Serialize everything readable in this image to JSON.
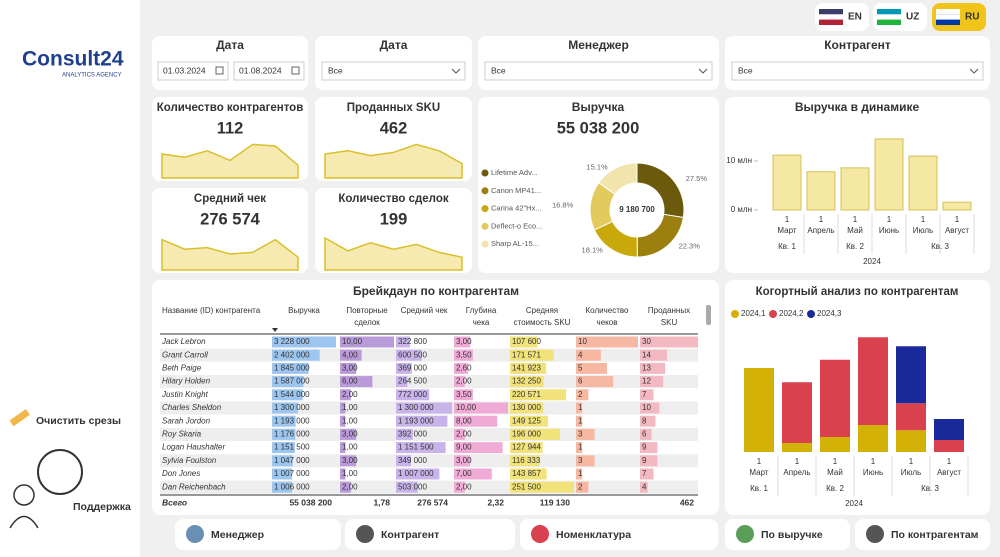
{
  "languages": [
    "EN",
    "UZ",
    "RU"
  ],
  "logo": {
    "name": "Consult24",
    "tagline": "ANALYTICS AGENCY"
  },
  "sidebar": {
    "clear": "Очистить срезы",
    "support": "Поддержка"
  },
  "filters": [
    {
      "title": "Дата",
      "from": "01.03.2024",
      "to": "01.08.2024"
    },
    {
      "title": "Дата",
      "value": "Все"
    },
    {
      "title": "Менеджер",
      "value": "Все"
    },
    {
      "title": "Контрагент",
      "value": "Все"
    }
  ],
  "kpis": [
    {
      "title": "Количество контрагентов",
      "value": "112"
    },
    {
      "title": "Проданных SKU",
      "value": "462"
    },
    {
      "title": "Средний чек",
      "value": "276 574"
    },
    {
      "title": "Количество сделок",
      "value": "199"
    }
  ],
  "revenue": {
    "title": "Выручка",
    "value": "55 038 200",
    "donut": {
      "type": "pie",
      "center_label": "9 180 700",
      "categories": [
        "Lifetime Adv...",
        "Canon MP41...",
        "Carina 42\"Hx...",
        "Deflect-o Eco...",
        "Sharp AL-15..."
      ],
      "values": [
        27.5,
        22.3,
        18.1,
        16.8,
        15.1
      ],
      "value_labels": [
        "27.5%",
        "22.3%",
        "18.1%",
        "16.8%",
        "15.1%"
      ],
      "colors": [
        "#6b5a0c",
        "#9c800f",
        "#c9a90a",
        "#e2cb5c",
        "#f1e4ad"
      ]
    }
  },
  "revenue_dynamics": {
    "type": "bar",
    "title": "Выручка в динамике",
    "categories": [
      "Март",
      "Апрель",
      "Май",
      "Июнь",
      "Июль",
      "Август"
    ],
    "day_labels": [
      "1",
      "1",
      "1",
      "1",
      "1",
      "1"
    ],
    "quarters": [
      "Кв. 1",
      "Кв. 2",
      "Кв. 3"
    ],
    "year": "2024",
    "values": [
      11.2,
      7.8,
      8.6,
      14.5,
      11.0,
      1.6
    ],
    "color": "#f5e8a3",
    "ylim": [
      0,
      16
    ],
    "yticks": [
      {
        "value": 0,
        "label": "0 млн"
      },
      {
        "value": 10,
        "label": "10 млн"
      }
    ]
  },
  "cohort": {
    "type": "stacked-bar",
    "title": "Когортный анализ по контрагентам",
    "categories": [
      "Март",
      "Апрель",
      "Май",
      "Июнь",
      "Июль",
      "Август"
    ],
    "day_labels": [
      "1",
      "1",
      "1",
      "1",
      "1",
      "1"
    ],
    "quarters": [
      "Кв. 1",
      "Кв. 2",
      "Кв. 3"
    ],
    "year": "2024",
    "ylim": [
      0,
      16
    ],
    "series": [
      {
        "name": "2024,1",
        "color": "#d4b106",
        "values": [
          11.2,
          1.2,
          2.0,
          3.6,
          2.9,
          null
        ]
      },
      {
        "name": "2024,2",
        "color": "#d9414f",
        "values": [
          null,
          8.1,
          10.3,
          11.7,
          3.6,
          1.6
        ]
      },
      {
        "name": "2024,3",
        "color": "#1b2a9a",
        "values": [
          null,
          null,
          null,
          null,
          7.6,
          2.8
        ]
      }
    ]
  },
  "table": {
    "title": "Брейкдаун по контрагентам",
    "headers": [
      [
        "Название (ID) контрагента"
      ],
      [
        "Выручка"
      ],
      [
        "Повторные",
        "сделок"
      ],
      [
        "Средний чек"
      ],
      [
        "Глубина",
        "чека"
      ],
      [
        "Средняя",
        "стоимость SKU"
      ],
      [
        "Количество",
        "чеков"
      ],
      [
        "Проданных",
        "SKU"
      ]
    ],
    "rows": [
      [
        "Jack Lebron",
        "3 228 000",
        "10,00",
        "322 800",
        "3,00",
        "107 600",
        "10",
        "30"
      ],
      [
        "Grant Carroll",
        "2 402 000",
        "4,00",
        "600 500",
        "3,50",
        "171 571",
        "4",
        "14"
      ],
      [
        "Beth Paige",
        "1 845 000",
        "3,00",
        "369 000",
        "2,60",
        "141 923",
        "5",
        "13"
      ],
      [
        "Hilary Holden",
        "1 587 000",
        "6,00",
        "264 500",
        "2,00",
        "132 250",
        "6",
        "12"
      ],
      [
        "Justin Knight",
        "1 544 000",
        "2,00",
        "772 000",
        "3,50",
        "220 571",
        "2",
        "7"
      ],
      [
        "Charles Sheldon",
        "1 300 000",
        "1,00",
        "1 300 000",
        "10,00",
        "130 000",
        "1",
        "10"
      ],
      [
        "Sarah Jordon",
        "1 193 000",
        "1,00",
        "1 193 000",
        "8,00",
        "149 125",
        "1",
        "8"
      ],
      [
        "Roy Skaria",
        "1 176 000",
        "3,00",
        "392 000",
        "2,00",
        "196 000",
        "3",
        "6"
      ],
      [
        "Logan Haushalter",
        "1 151 500",
        "1,00",
        "1 151 500",
        "9,00",
        "127 944",
        "1",
        "9"
      ],
      [
        "Sylvia Foulston",
        "1 047 000",
        "3,00",
        "349 000",
        "3,00",
        "116 333",
        "3",
        "9"
      ],
      [
        "Don Jones",
        "1 007 000",
        "1,00",
        "1 007 000",
        "7,00",
        "143 857",
        "1",
        "7"
      ],
      [
        "Dan Reichenbach",
        "1 006 000",
        "2,00",
        "503 000",
        "2,00",
        "251 500",
        "2",
        "4"
      ]
    ],
    "total": [
      "Всего",
      "55 038 200",
      "1,78",
      "276 574",
      "2,32",
      "119 130",
      null,
      "462"
    ]
  },
  "nav": [
    "Менеджер",
    "Контрагент",
    "Номенклатура",
    "По выручке",
    "По контрагентам"
  ]
}
